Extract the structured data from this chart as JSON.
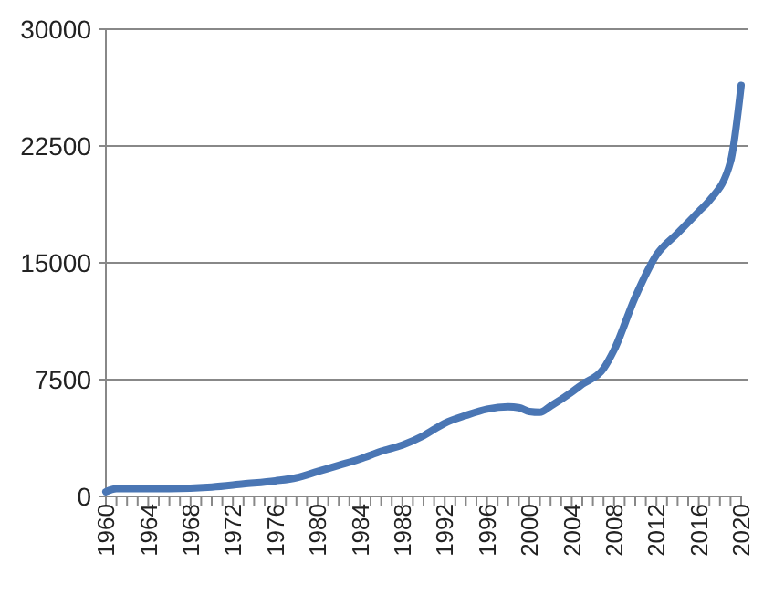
{
  "chart_data": {
    "type": "line",
    "x": [
      1960,
      1961,
      1966,
      1970,
      1973,
      1976,
      1978,
      1980,
      1982,
      1984,
      1986,
      1988,
      1990,
      1992,
      1994,
      1996,
      1998,
      1999,
      2000,
      2001,
      2002,
      2004,
      2005,
      2007,
      2008,
      2010,
      2012,
      2014,
      2016,
      2017,
      2019,
      2020
    ],
    "series": [
      {
        "color": "#4a76b4",
        "values": [
          300,
          500,
          500,
          600,
          800,
          1000,
          1200,
          1600,
          2000,
          2400,
          2900,
          3300,
          3900,
          4700,
          5200,
          5600,
          5750,
          5700,
          5450,
          5400,
          5800,
          6700,
          7200,
          8200,
          9400,
          12800,
          15500,
          16900,
          18300,
          19000,
          21500,
          26400
        ]
      }
    ],
    "xlim": [
      1960,
      2020
    ],
    "xticks": [
      1960,
      {
        "value": 1961,
        "label": null
      },
      {
        "value": 1962,
        "label": null
      },
      {
        "value": 1963,
        "label": null
      },
      1964,
      {
        "value": 1965,
        "label": null
      },
      {
        "value": 1966,
        "label": null
      },
      {
        "value": 1967,
        "label": null
      },
      1968,
      {
        "value": 1969,
        "label": null
      },
      {
        "value": 1970,
        "label": null
      },
      {
        "value": 1971,
        "label": null
      },
      1972,
      {
        "value": 1973,
        "label": null
      },
      {
        "value": 1974,
        "label": null
      },
      {
        "value": 1975,
        "label": null
      },
      1976,
      {
        "value": 1977,
        "label": null
      },
      {
        "value": 1978,
        "label": null
      },
      {
        "value": 1979,
        "label": null
      },
      1980,
      {
        "value": 1981,
        "label": null
      },
      {
        "value": 1982,
        "label": null
      },
      {
        "value": 1983,
        "label": null
      },
      1984,
      {
        "value": 1985,
        "label": null
      },
      {
        "value": 1986,
        "label": null
      },
      {
        "value": 1987,
        "label": null
      },
      1988,
      {
        "value": 1989,
        "label": null
      },
      {
        "value": 1990,
        "label": null
      },
      {
        "value": 1991,
        "label": null
      },
      1992,
      {
        "value": 1993,
        "label": null
      },
      {
        "value": 1994,
        "label": null
      },
      {
        "value": 1995,
        "label": null
      },
      1996,
      {
        "value": 1997,
        "label": null
      },
      {
        "value": 1998,
        "label": null
      },
      {
        "value": 1999,
        "label": null
      },
      2000,
      {
        "value": 2001,
        "label": null
      },
      {
        "value": 2002,
        "label": null
      },
      {
        "value": 2003,
        "label": null
      },
      2004,
      {
        "value": 2005,
        "label": null
      },
      {
        "value": 2006,
        "label": null
      },
      {
        "value": 2007,
        "label": null
      },
      2008,
      {
        "value": 2009,
        "label": null
      },
      {
        "value": 2010,
        "label": null
      },
      {
        "value": 2011,
        "label": null
      },
      2012,
      {
        "value": 2013,
        "label": null
      },
      {
        "value": 2014,
        "label": null
      },
      {
        "value": 2015,
        "label": null
      },
      2016,
      {
        "value": 2017,
        "label": null
      },
      {
        "value": 2018,
        "label": null
      },
      {
        "value": 2019,
        "label": null
      },
      2020
    ],
    "ylim": [
      0,
      30000
    ],
    "yticks": [
      0,
      7500,
      15000,
      22500,
      30000
    ],
    "grid": "y",
    "marker": "none",
    "line_style": "solid"
  }
}
